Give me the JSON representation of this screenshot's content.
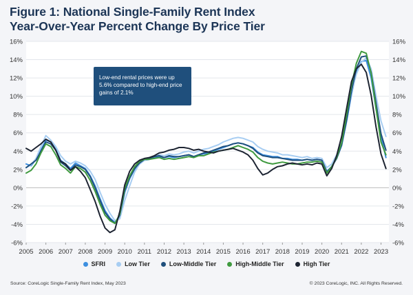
{
  "title": {
    "line1": "Figure 1: National Single-Family Rent Index",
    "line2": "Year-Over-Year Percent Change By Price Tier"
  },
  "callout": {
    "text": "Low-end rental prices were up 5.6% compared to high-end price gains of 2.1%"
  },
  "footer": {
    "source": "Source: CoreLogic Single-Family Rent Index, May 2023",
    "copyright": "© 2023 CoreLogic, INC. All Rights Reserved."
  },
  "chart_data": {
    "type": "line",
    "ylim": [
      -6,
      16
    ],
    "xlim": [
      2005,
      2023.4
    ],
    "grid": true,
    "legend_position": "bottom",
    "yticks": [
      "16%",
      "14%",
      "12%",
      "10%",
      "8%",
      "6%",
      "4%",
      "2%",
      "0%",
      "-2%",
      "-4%",
      "-6%"
    ],
    "xticks": [
      "2005",
      "2006",
      "2007",
      "2008",
      "2009",
      "2010",
      "2011",
      "2012",
      "2013",
      "2014",
      "2015",
      "2016",
      "2017",
      "2018",
      "2019",
      "2020",
      "2021",
      "2022",
      "2023"
    ],
    "x": [
      2005.0,
      2005.25,
      2005.5,
      2005.75,
      2006.0,
      2006.25,
      2006.5,
      2006.75,
      2007.0,
      2007.25,
      2007.5,
      2007.75,
      2008.0,
      2008.25,
      2008.5,
      2008.75,
      2009.0,
      2009.25,
      2009.5,
      2009.75,
      2010.0,
      2010.25,
      2010.5,
      2010.75,
      2011.0,
      2011.25,
      2011.5,
      2011.75,
      2012.0,
      2012.25,
      2012.5,
      2012.75,
      2013.0,
      2013.25,
      2013.5,
      2013.75,
      2014.0,
      2014.25,
      2014.5,
      2014.75,
      2015.0,
      2015.25,
      2015.5,
      2015.75,
      2016.0,
      2016.25,
      2016.5,
      2016.75,
      2017.0,
      2017.25,
      2017.5,
      2017.75,
      2018.0,
      2018.25,
      2018.5,
      2018.75,
      2019.0,
      2019.25,
      2019.5,
      2019.75,
      2020.0,
      2020.25,
      2020.5,
      2020.75,
      2021.0,
      2021.25,
      2021.5,
      2021.75,
      2022.0,
      2022.25,
      2022.5,
      2022.75,
      2023.0,
      2023.25
    ],
    "series": [
      {
        "name": "SFRI",
        "color": "#3d8fe0",
        "values": [
          2.6,
          2.4,
          3.1,
          4.1,
          5.2,
          5.0,
          4.2,
          3.0,
          2.6,
          2.1,
          2.7,
          2.4,
          2.1,
          1.3,
          0.2,
          -1.2,
          -2.5,
          -3.3,
          -3.8,
          -3.1,
          -0.5,
          1.0,
          2.0,
          2.6,
          3.0,
          3.1,
          3.3,
          3.4,
          3.3,
          3.4,
          3.3,
          3.4,
          3.5,
          3.6,
          3.4,
          3.6,
          3.7,
          3.8,
          4.0,
          4.2,
          4.4,
          4.6,
          4.8,
          4.9,
          4.8,
          4.6,
          4.4,
          3.9,
          3.6,
          3.5,
          3.4,
          3.4,
          3.2,
          3.2,
          3.1,
          3.1,
          3.0,
          3.1,
          3.0,
          3.1,
          3.0,
          1.8,
          2.3,
          3.2,
          4.6,
          7.2,
          10.2,
          12.6,
          13.8,
          13.9,
          12.0,
          8.6,
          5.6,
          3.3
        ]
      },
      {
        "name": "Low Tier",
        "color": "#a7cdf2",
        "values": [
          2.2,
          2.5,
          3.2,
          4.5,
          5.7,
          5.2,
          4.5,
          3.5,
          2.9,
          2.6,
          2.9,
          2.7,
          2.4,
          1.8,
          0.9,
          -0.5,
          -1.8,
          -2.8,
          -3.6,
          -3.4,
          -1.4,
          0.2,
          1.7,
          2.6,
          3.0,
          3.2,
          3.4,
          3.6,
          3.5,
          3.7,
          3.6,
          3.7,
          3.9,
          4.0,
          3.8,
          4.0,
          4.2,
          4.3,
          4.5,
          4.7,
          5.0,
          5.2,
          5.4,
          5.5,
          5.4,
          5.2,
          5.0,
          4.5,
          4.2,
          4.0,
          3.9,
          3.8,
          3.6,
          3.6,
          3.5,
          3.4,
          3.3,
          3.4,
          3.2,
          3.3,
          3.2,
          2.2,
          2.6,
          3.6,
          5.0,
          7.6,
          10.4,
          12.4,
          13.7,
          14.2,
          13.0,
          10.0,
          7.3,
          5.6
        ]
      },
      {
        "name": "Low-Middle Tier",
        "color": "#1f4f7c",
        "values": [
          2.2,
          2.6,
          3.0,
          4.0,
          5.0,
          4.8,
          4.1,
          2.8,
          2.4,
          1.9,
          2.5,
          2.3,
          2.0,
          1.2,
          0.0,
          -1.4,
          -2.7,
          -3.4,
          -3.9,
          -3.0,
          -0.3,
          1.1,
          2.1,
          2.7,
          3.1,
          3.2,
          3.4,
          3.5,
          3.3,
          3.5,
          3.4,
          3.4,
          3.5,
          3.6,
          3.4,
          3.6,
          3.8,
          3.9,
          4.1,
          4.3,
          4.5,
          4.6,
          4.8,
          4.9,
          4.8,
          4.6,
          4.3,
          3.8,
          3.5,
          3.4,
          3.3,
          3.3,
          3.2,
          3.1,
          3.0,
          3.0,
          3.0,
          3.1,
          3.0,
          3.1,
          3.0,
          1.7,
          2.3,
          3.2,
          4.7,
          7.4,
          10.6,
          13.0,
          14.3,
          14.4,
          12.6,
          9.2,
          5.9,
          4.1
        ]
      },
      {
        "name": "High-Middle Tier",
        "color": "#3f9a3f",
        "values": [
          1.6,
          1.9,
          2.6,
          3.8,
          4.8,
          4.5,
          3.6,
          2.5,
          2.1,
          1.6,
          2.3,
          2.1,
          1.7,
          0.8,
          -0.4,
          -1.8,
          -3.0,
          -3.6,
          -3.9,
          -2.9,
          -0.1,
          1.3,
          2.3,
          2.9,
          3.1,
          3.1,
          3.2,
          3.3,
          3.1,
          3.2,
          3.1,
          3.2,
          3.3,
          3.4,
          3.3,
          3.5,
          3.5,
          3.7,
          3.9,
          4.0,
          4.1,
          4.2,
          4.4,
          4.6,
          4.4,
          4.2,
          3.9,
          3.3,
          2.9,
          2.7,
          2.6,
          2.7,
          2.8,
          2.7,
          2.6,
          2.6,
          2.7,
          2.8,
          2.8,
          2.9,
          2.8,
          1.6,
          2.3,
          3.3,
          4.9,
          7.9,
          11.2,
          13.6,
          14.9,
          14.7,
          12.5,
          8.6,
          5.0,
          3.6
        ]
      },
      {
        "name": "High Tier",
        "color": "#1d2432",
        "values": [
          4.3,
          4.0,
          4.4,
          4.8,
          5.3,
          5.0,
          4.1,
          2.9,
          2.6,
          1.9,
          2.3,
          1.8,
          1.1,
          -0.2,
          -1.5,
          -3.1,
          -4.4,
          -4.9,
          -4.6,
          -2.6,
          0.3,
          1.8,
          2.6,
          3.0,
          3.2,
          3.3,
          3.5,
          3.8,
          3.9,
          4.1,
          4.2,
          4.4,
          4.4,
          4.3,
          4.1,
          4.2,
          4.0,
          3.9,
          3.8,
          4.0,
          4.1,
          4.2,
          4.3,
          4.1,
          3.9,
          3.6,
          3.0,
          2.1,
          1.4,
          1.6,
          2.0,
          2.3,
          2.4,
          2.6,
          2.7,
          2.6,
          2.5,
          2.6,
          2.5,
          2.7,
          2.6,
          1.3,
          2.1,
          3.5,
          5.6,
          8.6,
          11.6,
          13.0,
          13.5,
          12.6,
          10.1,
          6.6,
          3.7,
          2.1
        ]
      }
    ]
  }
}
